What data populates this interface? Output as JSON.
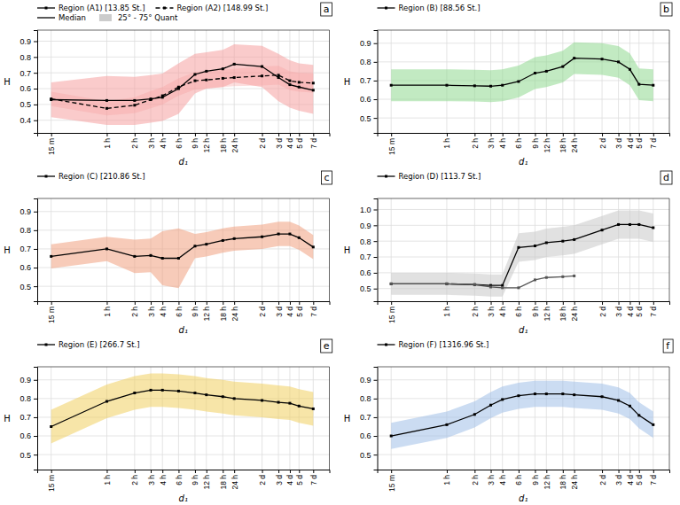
{
  "chart_data": [
    {
      "type": "line",
      "annotation": "a",
      "xlabel": "d₁",
      "ylabel": "H",
      "grid": true,
      "legend": "upper left",
      "color": "#f5a0a0",
      "x": [
        0,
        2.0,
        3.0,
        3.58,
        4.0,
        4.58,
        5.17,
        5.58,
        6.17,
        6.58,
        7.58,
        8.17,
        8.58,
        8.91,
        9.42
      ],
      "xlim": [
        -0.5,
        10
      ],
      "xticks": [
        {
          "value": 0,
          "label": "15 m"
        },
        {
          "value": 2.0,
          "label": "1 h"
        },
        {
          "value": 3.0,
          "label": "2 h"
        },
        {
          "value": 3.58,
          "label": "3 h"
        },
        {
          "value": 4.0,
          "label": "4 h"
        },
        {
          "value": 4.58,
          "label": "6 h"
        },
        {
          "value": 5.17,
          "label": "9 h"
        },
        {
          "value": 5.58,
          "label": "12 h"
        },
        {
          "value": 6.17,
          "label": "18 h"
        },
        {
          "value": 6.58,
          "label": "24 h"
        },
        {
          "value": 7.58,
          "label": "2 d"
        },
        {
          "value": 8.17,
          "label": "3 d"
        },
        {
          "value": 8.58,
          "label": "4 d"
        },
        {
          "value": 8.91,
          "label": "5 d"
        },
        {
          "value": 9.42,
          "label": "7 d"
        }
      ],
      "ylim": [
        0.32,
        0.97
      ],
      "yticks": [
        0.4,
        0.5,
        0.6,
        0.7,
        0.8,
        0.9
      ],
      "series": [
        {
          "name": "Region (A1) [13.85 St.]",
          "color": "#000000",
          "line_style": "solid",
          "marker": "square",
          "values": [
            0.53,
            0.525,
            0.525,
            0.535,
            0.545,
            0.6,
            0.69,
            0.71,
            0.725,
            0.755,
            0.74,
            0.67,
            0.625,
            0.61,
            0.59
          ],
          "q25": [
            0.42,
            0.37,
            0.37,
            0.385,
            0.395,
            0.44,
            0.57,
            0.6,
            0.61,
            0.64,
            0.61,
            0.52,
            0.48,
            0.46,
            0.44
          ],
          "q75": [
            0.64,
            0.68,
            0.675,
            0.685,
            0.695,
            0.76,
            0.82,
            0.83,
            0.845,
            0.88,
            0.87,
            0.82,
            0.78,
            0.76,
            0.75
          ]
        },
        {
          "name": "Region (A2) [148.99 St.]",
          "color": "#000000",
          "line_style": "dashed",
          "marker": "square",
          "values": [
            0.535,
            0.475,
            0.495,
            0.53,
            0.555,
            0.61,
            0.65,
            0.655,
            0.665,
            0.67,
            0.68,
            0.685,
            0.65,
            0.64,
            0.635
          ],
          "q25": [
            0.49,
            0.43,
            0.445,
            0.475,
            0.5,
            0.555,
            0.595,
            0.6,
            0.61,
            0.615,
            0.62,
            0.625,
            0.59,
            0.58,
            0.575
          ],
          "q75": [
            0.58,
            0.52,
            0.545,
            0.585,
            0.61,
            0.665,
            0.705,
            0.71,
            0.72,
            0.725,
            0.74,
            0.745,
            0.71,
            0.7,
            0.695
          ]
        }
      ],
      "key_entries": [
        {
          "name": "Median",
          "type": "line",
          "color": "#000000"
        },
        {
          "name": "25° - 75° Quant",
          "type": "area",
          "color": "#cccccc"
        }
      ]
    },
    {
      "type": "line",
      "annotation": "b",
      "xlabel": "d₁",
      "ylabel": "H",
      "grid": true,
      "legend": "upper left",
      "color": "#90d890",
      "x": [
        0,
        2.0,
        3.0,
        3.58,
        4.0,
        4.58,
        5.17,
        5.58,
        6.17,
        6.58,
        7.58,
        8.17,
        8.58,
        8.91,
        9.42
      ],
      "xlim": [
        -0.5,
        10
      ],
      "xticks": [
        {
          "value": 0,
          "label": "15 m"
        },
        {
          "value": 2.0,
          "label": "1 h"
        },
        {
          "value": 3.0,
          "label": "2 h"
        },
        {
          "value": 3.58,
          "label": "3 h"
        },
        {
          "value": 4.0,
          "label": "4 h"
        },
        {
          "value": 4.58,
          "label": "6 h"
        },
        {
          "value": 5.17,
          "label": "9 h"
        },
        {
          "value": 5.58,
          "label": "12 h"
        },
        {
          "value": 6.17,
          "label": "18 h"
        },
        {
          "value": 6.58,
          "label": "24 h"
        },
        {
          "value": 7.58,
          "label": "2 d"
        },
        {
          "value": 8.17,
          "label": "3 d"
        },
        {
          "value": 8.58,
          "label": "4 d"
        },
        {
          "value": 8.91,
          "label": "5 d"
        },
        {
          "value": 9.42,
          "label": "7 d"
        }
      ],
      "ylim": [
        0.42,
        0.97
      ],
      "yticks": [
        0.5,
        0.6,
        0.7,
        0.8,
        0.9
      ],
      "series": [
        {
          "name": "Region (B) [88.56 St.]",
          "color": "#000000",
          "line_style": "solid",
          "marker": "square",
          "values": [
            0.675,
            0.675,
            0.672,
            0.67,
            0.675,
            0.695,
            0.74,
            0.75,
            0.775,
            0.82,
            0.815,
            0.8,
            0.76,
            0.68,
            0.675
          ],
          "q25": [
            0.59,
            0.59,
            0.588,
            0.585,
            0.59,
            0.61,
            0.655,
            0.665,
            0.69,
            0.735,
            0.73,
            0.715,
            0.675,
            0.595,
            0.59
          ],
          "q75": [
            0.76,
            0.76,
            0.758,
            0.755,
            0.76,
            0.78,
            0.825,
            0.835,
            0.86,
            0.905,
            0.9,
            0.885,
            0.845,
            0.765,
            0.76
          ]
        }
      ]
    },
    {
      "type": "line",
      "annotation": "c",
      "xlabel": "d₁",
      "ylabel": "H",
      "grid": true,
      "legend": "upper left",
      "color": "#f0a080",
      "x": [
        0,
        2.0,
        3.0,
        3.58,
        4.0,
        4.58,
        5.17,
        5.58,
        6.17,
        6.58,
        7.58,
        8.17,
        8.58,
        8.91,
        9.42
      ],
      "xlim": [
        -0.5,
        10
      ],
      "xticks": [
        {
          "value": 0,
          "label": "15 m"
        },
        {
          "value": 2.0,
          "label": "1 h"
        },
        {
          "value": 3.0,
          "label": "2 h"
        },
        {
          "value": 3.58,
          "label": "3 h"
        },
        {
          "value": 4.0,
          "label": "4 h"
        },
        {
          "value": 4.58,
          "label": "6 h"
        },
        {
          "value": 5.17,
          "label": "9 h"
        },
        {
          "value": 5.58,
          "label": "12 h"
        },
        {
          "value": 6.17,
          "label": "18 h"
        },
        {
          "value": 6.58,
          "label": "24 h"
        },
        {
          "value": 7.58,
          "label": "2 d"
        },
        {
          "value": 8.17,
          "label": "3 d"
        },
        {
          "value": 8.58,
          "label": "4 d"
        },
        {
          "value": 8.91,
          "label": "5 d"
        },
        {
          "value": 9.42,
          "label": "7 d"
        }
      ],
      "ylim": [
        0.42,
        0.97
      ],
      "yticks": [
        0.5,
        0.6,
        0.7,
        0.8,
        0.9
      ],
      "series": [
        {
          "name": "Region (C) [210.86 St.]",
          "color": "#000000",
          "line_style": "solid",
          "marker": "square",
          "values": [
            0.66,
            0.7,
            0.66,
            0.665,
            0.65,
            0.65,
            0.715,
            0.725,
            0.745,
            0.755,
            0.765,
            0.78,
            0.78,
            0.76,
            0.71
          ],
          "q25": [
            0.595,
            0.635,
            0.57,
            0.575,
            0.505,
            0.49,
            0.65,
            0.66,
            0.68,
            0.69,
            0.7,
            0.715,
            0.715,
            0.695,
            0.645
          ],
          "q75": [
            0.725,
            0.765,
            0.75,
            0.755,
            0.795,
            0.81,
            0.78,
            0.79,
            0.81,
            0.82,
            0.83,
            0.845,
            0.845,
            0.825,
            0.775
          ]
        }
      ]
    },
    {
      "type": "line",
      "annotation": "d",
      "xlabel": "d₁",
      "ylabel": "H",
      "grid": true,
      "legend": "upper left",
      "color": "#c8c8c8",
      "x": [
        0,
        2.0,
        3.0,
        3.58,
        4.0,
        4.58,
        5.17,
        5.58,
        6.17,
        6.58,
        7.58,
        8.17,
        8.58,
        8.91,
        9.42
      ],
      "xlim": [
        -0.5,
        10
      ],
      "xticks": [
        {
          "value": 0,
          "label": "15 m"
        },
        {
          "value": 2.0,
          "label": "1 h"
        },
        {
          "value": 3.0,
          "label": "2 h"
        },
        {
          "value": 3.58,
          "label": "3 h"
        },
        {
          "value": 4.0,
          "label": "4 h"
        },
        {
          "value": 4.58,
          "label": "6 h"
        },
        {
          "value": 5.17,
          "label": "9 h"
        },
        {
          "value": 5.58,
          "label": "12 h"
        },
        {
          "value": 6.17,
          "label": "18 h"
        },
        {
          "value": 6.58,
          "label": "24 h"
        },
        {
          "value": 7.58,
          "label": "2 d"
        },
        {
          "value": 8.17,
          "label": "3 d"
        },
        {
          "value": 8.58,
          "label": "4 d"
        },
        {
          "value": 8.91,
          "label": "5 d"
        },
        {
          "value": 9.42,
          "label": "7 d"
        }
      ],
      "ylim": [
        0.42,
        1.07
      ],
      "yticks": [
        0.5,
        0.6,
        0.7,
        0.8,
        0.9,
        {
          "value": 1.0,
          "label": "1.0"
        }
      ],
      "series": [
        {
          "name": "Region (D) [113.7 St.]",
          "color": "#000000",
          "line_style": "solid",
          "marker": "square",
          "values": [
            0.53,
            0.53,
            0.525,
            0.52,
            0.52,
            0.76,
            0.77,
            0.79,
            0.8,
            0.81,
            0.87,
            0.905,
            0.905,
            0.905,
            0.885
          ],
          "q25": [
            0.46,
            0.46,
            0.455,
            0.45,
            0.45,
            0.67,
            0.68,
            0.7,
            0.71,
            0.72,
            0.78,
            0.815,
            0.815,
            0.815,
            0.795
          ],
          "q75": [
            0.6,
            0.6,
            0.595,
            0.59,
            0.59,
            0.85,
            0.86,
            0.88,
            0.89,
            0.9,
            0.96,
            0.995,
            0.995,
            0.995,
            0.975
          ]
        },
        {
          "color": "#555555",
          "line_style": "solid",
          "marker": "square",
          "values": [
            0.53,
            0.53,
            0.525,
            0.51,
            0.505,
            0.505,
            0.555,
            0.57,
            0.575,
            0.58,
            null,
            null,
            null,
            null,
            null
          ]
        }
      ]
    },
    {
      "type": "line",
      "annotation": "e",
      "xlabel": "d₁",
      "ylabel": "H",
      "grid": true,
      "legend": "upper left",
      "color": "#f0d060",
      "x": [
        0,
        2.0,
        3.0,
        3.58,
        4.0,
        4.58,
        5.17,
        5.58,
        6.17,
        6.58,
        7.58,
        8.17,
        8.58,
        8.91,
        9.42
      ],
      "xlim": [
        -0.5,
        10
      ],
      "xticks": [
        {
          "value": 0,
          "label": "15 m"
        },
        {
          "value": 2.0,
          "label": "1 h"
        },
        {
          "value": 3.0,
          "label": "2 h"
        },
        {
          "value": 3.58,
          "label": "3 h"
        },
        {
          "value": 4.0,
          "label": "4 h"
        },
        {
          "value": 4.58,
          "label": "6 h"
        },
        {
          "value": 5.17,
          "label": "9 h"
        },
        {
          "value": 5.58,
          "label": "12 h"
        },
        {
          "value": 6.17,
          "label": "18 h"
        },
        {
          "value": 6.58,
          "label": "24 h"
        },
        {
          "value": 7.58,
          "label": "2 d"
        },
        {
          "value": 8.17,
          "label": "3 d"
        },
        {
          "value": 8.58,
          "label": "4 d"
        },
        {
          "value": 8.91,
          "label": "5 d"
        },
        {
          "value": 9.42,
          "label": "7 d"
        }
      ],
      "ylim": [
        0.42,
        0.97
      ],
      "yticks": [
        0.5,
        0.6,
        0.7,
        0.8,
        0.9
      ],
      "series": [
        {
          "name": "Region (E) [266.7 St.]",
          "color": "#000000",
          "line_style": "solid",
          "marker": "square",
          "values": [
            0.65,
            0.785,
            0.83,
            0.845,
            0.845,
            0.84,
            0.83,
            0.82,
            0.81,
            0.8,
            0.79,
            0.78,
            0.775,
            0.76,
            0.745
          ],
          "q25": [
            0.56,
            0.695,
            0.74,
            0.755,
            0.755,
            0.75,
            0.74,
            0.73,
            0.72,
            0.71,
            0.7,
            0.69,
            0.685,
            0.67,
            0.655
          ],
          "q75": [
            0.74,
            0.875,
            0.92,
            0.935,
            0.935,
            0.93,
            0.92,
            0.91,
            0.9,
            0.89,
            0.88,
            0.87,
            0.865,
            0.85,
            0.835
          ]
        }
      ]
    },
    {
      "type": "line",
      "annotation": "f",
      "xlabel": "d₁",
      "ylabel": "H",
      "grid": true,
      "legend": "upper left",
      "color": "#a0c0e8",
      "x": [
        0,
        2.0,
        3.0,
        3.58,
        4.0,
        4.58,
        5.17,
        5.58,
        6.17,
        6.58,
        7.58,
        8.17,
        8.58,
        8.91,
        9.42
      ],
      "xlim": [
        -0.5,
        10
      ],
      "xticks": [
        {
          "value": 0,
          "label": "15 m"
        },
        {
          "value": 2.0,
          "label": "1 h"
        },
        {
          "value": 3.0,
          "label": "2 h"
        },
        {
          "value": 3.58,
          "label": "3 h"
        },
        {
          "value": 4.0,
          "label": "4 h"
        },
        {
          "value": 4.58,
          "label": "6 h"
        },
        {
          "value": 5.17,
          "label": "9 h"
        },
        {
          "value": 5.58,
          "label": "12 h"
        },
        {
          "value": 6.17,
          "label": "18 h"
        },
        {
          "value": 6.58,
          "label": "24 h"
        },
        {
          "value": 7.58,
          "label": "2 d"
        },
        {
          "value": 8.17,
          "label": "3 d"
        },
        {
          "value": 8.58,
          "label": "4 d"
        },
        {
          "value": 8.91,
          "label": "5 d"
        },
        {
          "value": 9.42,
          "label": "7 d"
        }
      ],
      "ylim": [
        0.42,
        0.97
      ],
      "yticks": [
        0.5,
        0.6,
        0.7,
        0.8,
        0.9
      ],
      "series": [
        {
          "name": "Region (F) [1316.96 St.]",
          "color": "#000000",
          "line_style": "solid",
          "marker": "square",
          "values": [
            0.6,
            0.66,
            0.715,
            0.765,
            0.795,
            0.815,
            0.825,
            0.825,
            0.825,
            0.82,
            0.81,
            0.79,
            0.76,
            0.71,
            0.66
          ],
          "q25": [
            0.53,
            0.59,
            0.645,
            0.695,
            0.725,
            0.745,
            0.755,
            0.755,
            0.755,
            0.75,
            0.74,
            0.72,
            0.69,
            0.64,
            0.59
          ],
          "q75": [
            0.67,
            0.73,
            0.785,
            0.835,
            0.865,
            0.885,
            0.895,
            0.895,
            0.895,
            0.89,
            0.88,
            0.86,
            0.83,
            0.78,
            0.73
          ]
        }
      ]
    }
  ]
}
